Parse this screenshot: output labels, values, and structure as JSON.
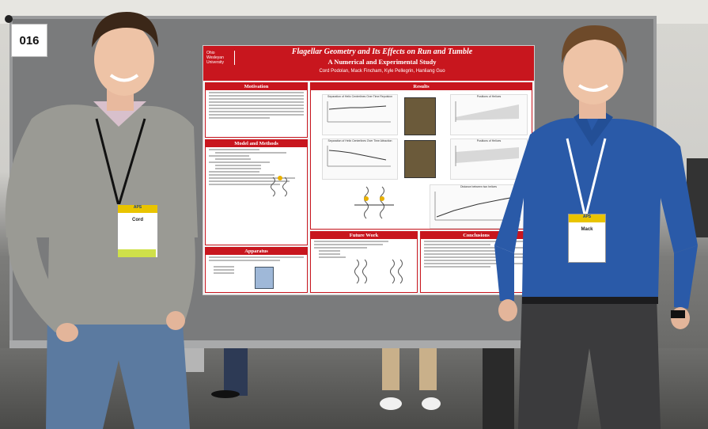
{
  "booth": {
    "number": "016"
  },
  "poster": {
    "logo": "Ohio Wesleyan University",
    "title": "Flagellar Geometry and Its Effects on Run and Tumble",
    "subtitle": "A Numerical and Experimental Study",
    "authors": "Cord Podolan, Mack Fincham, Kyle Pellegrin, Hanliang Guo",
    "sections": {
      "motivation": "Motivation",
      "model": "Model and Methods",
      "apparatus": "Apparatus",
      "results": "Results",
      "future": "Future Work",
      "conclusions": "Conclusions"
    },
    "plots": {
      "p1": "Separation of Helix Centerlines Over Time Repulsion",
      "p2": "Positions of Helices",
      "p3": "Separation of Helix Centerlines Over Time Attraction",
      "p4": "Positions of Helices",
      "p5": "Distance between two helices"
    }
  },
  "badges": {
    "left": {
      "name": "Cord",
      "event": "APS"
    },
    "right": {
      "name": "Mack",
      "event": "APS"
    }
  },
  "colors": {
    "poster_red": "#c8161e",
    "left_sweater": "#9a9a94",
    "right_shirt": "#2a5aa8"
  }
}
